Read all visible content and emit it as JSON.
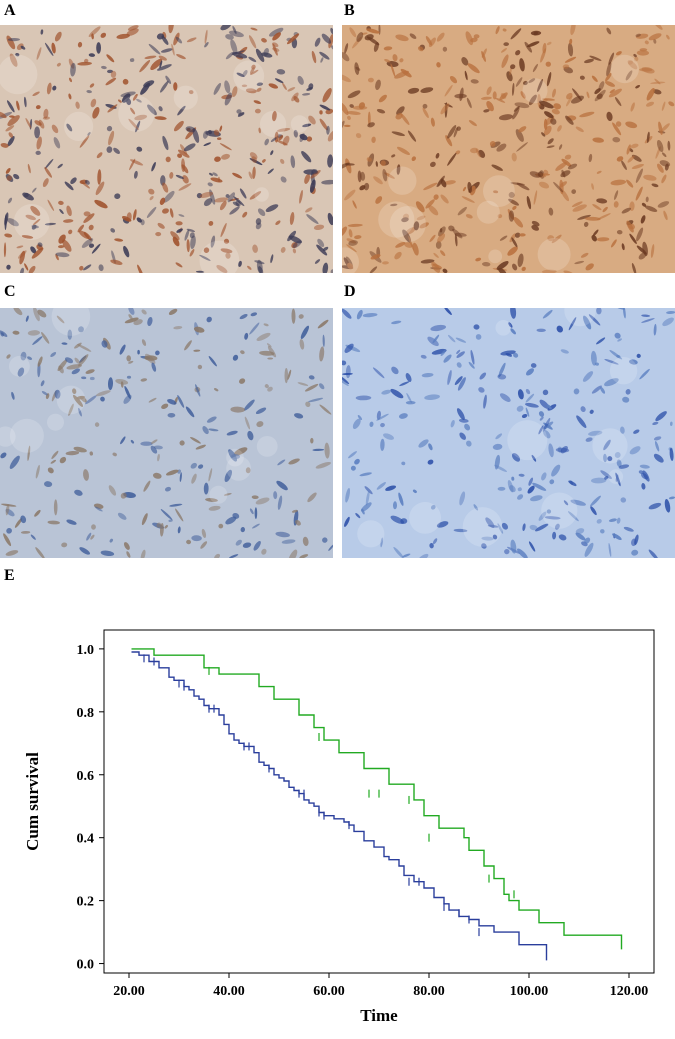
{
  "panels": [
    {
      "label": "A",
      "stain": "strong",
      "bg": "#d9c6b5",
      "cell": "#a0522d",
      "nucleus": "#3b3a55"
    },
    {
      "label": "B",
      "stain": "strong",
      "bg": "#d8ab82",
      "cell": "#b8703e",
      "nucleus": "#6b3a22"
    },
    {
      "label": "C",
      "stain": "weak",
      "bg": "#b9c4d6",
      "cell": "#8a7868",
      "nucleus": "#3f5d9a"
    },
    {
      "label": "D",
      "stain": "negative",
      "bg": "#b8cbe8",
      "cell": "#5b7fc0",
      "nucleus": "#2b4fa8"
    }
  ],
  "panel_e_label": "E",
  "chart_data": {
    "type": "line",
    "subtype": "kaplan-meier",
    "xlabel": "Time",
    "ylabel": "Cum survival",
    "xlim": [
      15,
      125
    ],
    "ylim": [
      -0.03,
      1.06
    ],
    "xticks": [
      "20.00",
      "40.00",
      "60.00",
      "80.00",
      "100.00",
      "120.00"
    ],
    "xtick_values": [
      20,
      40,
      60,
      80,
      100,
      120
    ],
    "yticks": [
      "0.0",
      "0.2",
      "0.4",
      "0.6",
      "0.8",
      "1.0"
    ],
    "ytick_values": [
      0,
      0.2,
      0.4,
      0.6,
      0.8,
      1.0
    ],
    "grid": false,
    "series": [
      {
        "color": "#22aa22",
        "x": [
          20.5,
          25,
          35,
          38,
          46,
          49,
          54,
          57,
          59,
          62,
          67,
          72,
          77,
          79,
          82,
          87,
          88,
          91,
          93,
          95,
          96,
          98,
          102,
          107,
          118.5
        ],
        "y": [
          1.0,
          0.98,
          0.94,
          0.92,
          0.88,
          0.84,
          0.79,
          0.75,
          0.71,
          0.67,
          0.62,
          0.57,
          0.52,
          0.47,
          0.43,
          0.4,
          0.36,
          0.31,
          0.27,
          0.22,
          0.2,
          0.17,
          0.13,
          0.09,
          0.045
        ],
        "censored_x": [
          36,
          58,
          68,
          70,
          76,
          80,
          92,
          97
        ],
        "censored_y": [
          0.93,
          0.72,
          0.54,
          0.54,
          0.52,
          0.4,
          0.27,
          0.22
        ]
      },
      {
        "color": "#2a3e9c",
        "x": [
          20.5,
          22,
          24,
          26,
          28,
          29,
          31,
          32,
          33,
          34,
          35,
          36,
          38,
          39,
          40,
          41,
          42,
          43,
          45,
          46,
          47,
          48,
          49,
          50,
          51,
          52,
          53,
          54,
          55,
          56,
          57,
          58,
          59,
          61,
          63,
          64,
          65,
          67,
          69,
          71,
          72,
          74,
          75,
          77,
          79,
          81,
          83,
          84,
          86,
          88,
          90,
          93,
          98,
          103.5
        ],
        "y": [
          0.99,
          0.98,
          0.96,
          0.94,
          0.91,
          0.9,
          0.88,
          0.87,
          0.85,
          0.84,
          0.82,
          0.81,
          0.79,
          0.76,
          0.73,
          0.71,
          0.7,
          0.69,
          0.67,
          0.64,
          0.63,
          0.62,
          0.6,
          0.59,
          0.58,
          0.56,
          0.55,
          0.54,
          0.52,
          0.51,
          0.5,
          0.48,
          0.47,
          0.46,
          0.45,
          0.44,
          0.42,
          0.39,
          0.37,
          0.34,
          0.33,
          0.31,
          0.28,
          0.26,
          0.24,
          0.21,
          0.19,
          0.17,
          0.15,
          0.14,
          0.12,
          0.1,
          0.06,
          0.01
        ],
        "censored_x": [
          23,
          25,
          30,
          31,
          36,
          37,
          43,
          44,
          48,
          54,
          55,
          58,
          59,
          64,
          76,
          78,
          83,
          86,
          88,
          90
        ],
        "censored_y": [
          0.97,
          0.96,
          0.89,
          0.88,
          0.81,
          0.81,
          0.69,
          0.69,
          0.62,
          0.54,
          0.54,
          0.48,
          0.47,
          0.44,
          0.26,
          0.26,
          0.18,
          0.16,
          0.14,
          0.1
        ]
      }
    ]
  }
}
